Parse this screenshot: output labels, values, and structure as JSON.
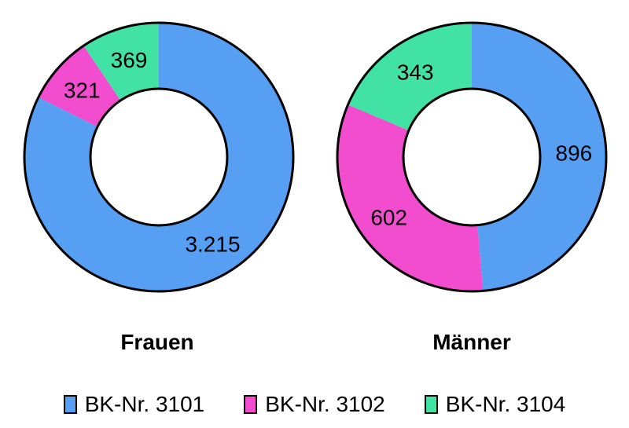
{
  "chart_data": {
    "type": "pie",
    "subtype": "donut",
    "legend_position": "bottom",
    "grid": false,
    "categories": [
      "BK-Nr. 3101",
      "BK-Nr. 3102",
      "BK-Nr. 3104"
    ],
    "colors": [
      "#569ff3",
      "#f24ccf",
      "#41e2a4"
    ],
    "outline_color": "#000000",
    "charts": [
      {
        "title": "Frauen",
        "values": [
          3215,
          321,
          369
        ],
        "value_labels": [
          "3.215",
          "321",
          "369"
        ]
      },
      {
        "title": "Männer",
        "values": [
          896,
          602,
          343
        ],
        "value_labels": [
          "896",
          "602",
          "343"
        ]
      }
    ]
  }
}
